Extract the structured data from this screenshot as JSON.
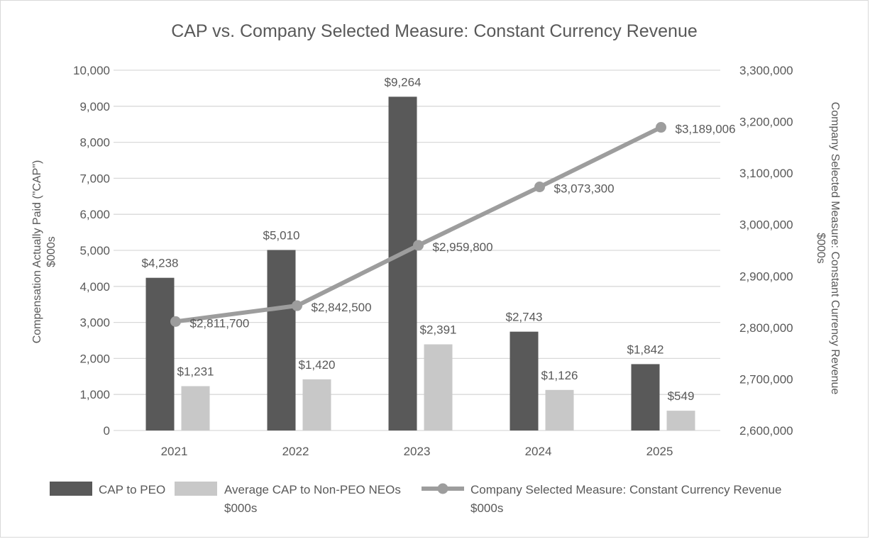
{
  "chart_data": {
    "type": "bar",
    "title": "CAP vs. Company Selected Measure: Constant Currency Revenue",
    "categories": [
      "2021",
      "2022",
      "2023",
      "2024",
      "2025"
    ],
    "ylabel_lines": [
      "Compensation Actually Paid (\"CAP\")",
      "$000s"
    ],
    "y2label_lines": [
      "Company Selected Measure: Constant Currency Revenue",
      "$000s"
    ],
    "ylim": [
      0,
      10000
    ],
    "yticks": [
      0,
      1000,
      2000,
      3000,
      4000,
      5000,
      6000,
      7000,
      8000,
      9000,
      10000
    ],
    "ytick_labels": [
      "0",
      "1,000",
      "2,000",
      "3,000",
      "4,000",
      "5,000",
      "6,000",
      "7,000",
      "8,000",
      "9,000",
      "10,000"
    ],
    "y2lim": [
      2600000,
      3300000
    ],
    "y2ticks": [
      2600000,
      2700000,
      2800000,
      2900000,
      3000000,
      3100000,
      3200000,
      3300000
    ],
    "y2tick_labels": [
      "2,600,000",
      "2,700,000",
      "2,800,000",
      "2,900,000",
      "3,000,000",
      "3,100,000",
      "3,200,000",
      "3,300,000"
    ],
    "grid": true,
    "legend_position": "bottom",
    "series": [
      {
        "name": "CAP to PEO",
        "kind": "bar",
        "axis": "left",
        "color": "#595959",
        "values": [
          4238,
          5010,
          9264,
          2743,
          1842
        ],
        "labels": [
          "$4,238",
          "$5,010",
          "$9,264",
          "$2,743",
          "$1,842"
        ]
      },
      {
        "name": "Average CAP to Non-PEO NEOs",
        "name_line2": "$000s",
        "kind": "bar",
        "axis": "left",
        "color": "#c8c8c8",
        "values": [
          1231,
          1420,
          2391,
          1126,
          549
        ],
        "labels": [
          "$1,231",
          "$1,420",
          "$2,391",
          "$1,126",
          "$549"
        ]
      },
      {
        "name": "Company Selected Measure: Constant Currency Revenue",
        "name_line2": "$000s",
        "kind": "line",
        "axis": "right",
        "color": "#9d9d9d",
        "values": [
          2811700,
          2842500,
          2959800,
          3073300,
          3189006
        ],
        "labels": [
          "$2,811,700",
          "$2,842,500",
          "$2,959,800",
          "$3,073,300",
          "$3,189,006"
        ]
      }
    ]
  }
}
